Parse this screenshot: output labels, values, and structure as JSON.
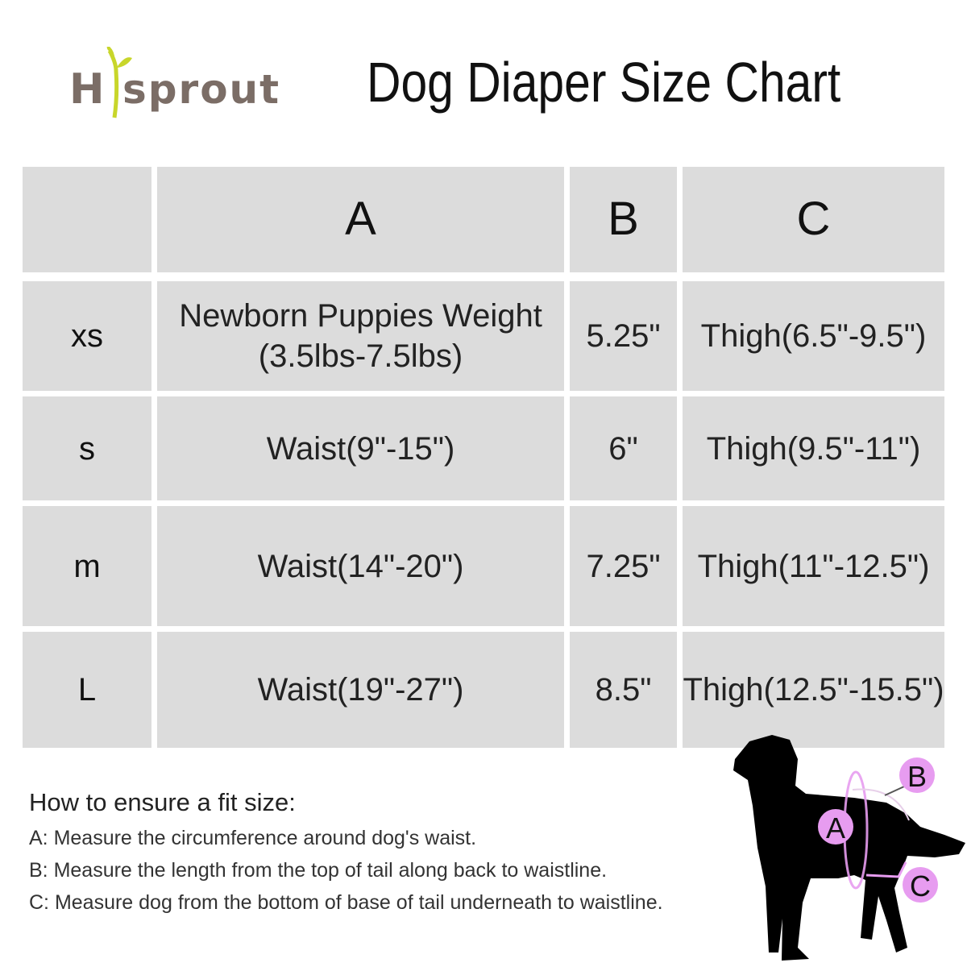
{
  "logo": {
    "text": "Hisprout",
    "colors": {
      "text": "#7b6d66",
      "sprout": "#c8d62b"
    }
  },
  "title": "Dog Diaper Size Chart",
  "table": {
    "headers": [
      "",
      "A",
      "B",
      "C"
    ],
    "rows": [
      {
        "size": "xs",
        "a_line1": "Newborn Puppies Weight",
        "a_line2": "(3.5lbs-7.5lbs)",
        "b": "5.25\"",
        "c": "Thigh(6.5\"-9.5\")"
      },
      {
        "size": "s",
        "a_line1": "Waist(9\"-15\")",
        "a_line2": "",
        "b": "6\"",
        "c": "Thigh(9.5\"-11\")"
      },
      {
        "size": "m",
        "a_line1": "Waist(14\"-20\")",
        "a_line2": "",
        "b": "7.25\"",
        "c": "Thigh(11\"-12.5\")"
      },
      {
        "size": "L",
        "a_line1": "Waist(19\"-27\")",
        "a_line2": "",
        "b": "8.5\"",
        "c": "Thigh(12.5\"-15.5\")"
      }
    ],
    "cell_color": "#dcdcdc"
  },
  "howto": {
    "heading": "How to ensure a fit size:",
    "lines": [
      "A: Measure the circumference around dog's waist.",
      "B: Measure the length from the top of tail along back to waistline.",
      "C: Measure dog from the bottom of base of tail underneath to waistline."
    ]
  },
  "diagram": {
    "labels": [
      "A",
      "B",
      "C"
    ],
    "marker_color": "#e79cf0",
    "silhouette_color": "#000000"
  }
}
